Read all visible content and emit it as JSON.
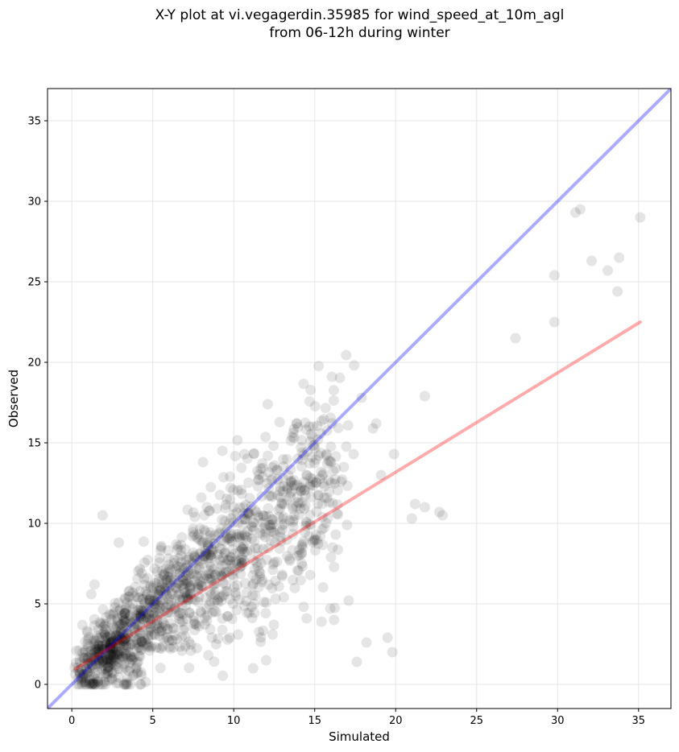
{
  "chart_data": {
    "type": "scatter",
    "title": [
      "X-Y plot at vi.vegagerdin.35985 for wind_speed_at_10m_agl",
      "from 06-12h during winter"
    ],
    "xlabel": "Simulated",
    "ylabel": "Observed",
    "xlim": [
      -1.5,
      37
    ],
    "ylim": [
      -1.5,
      37
    ],
    "xticks": [
      0,
      5,
      10,
      15,
      20,
      25,
      30,
      35
    ],
    "yticks": [
      0,
      5,
      10,
      15,
      20,
      25,
      30,
      35
    ],
    "grid": true,
    "colors": {
      "points": "#000000",
      "identity_line": "#0000ff",
      "fit_line": "#ff0000",
      "grid": "#e6e6e6"
    },
    "identity_line": {
      "x": [
        -1.5,
        37
      ],
      "y": [
        -1.5,
        37
      ]
    },
    "fit_line": {
      "x": [
        0.2,
        35.1
      ],
      "y": [
        0.95,
        22.5
      ]
    },
    "points_x": [
      27.4,
      29.8,
      29.8,
      31.1,
      31.4,
      32.1,
      33.1,
      33.7,
      33.8,
      35.1,
      21.0,
      21.2,
      21.8,
      22.7,
      22.9,
      19.5,
      19.8,
      17.6,
      18.2,
      18.8,
      19.1,
      19.9,
      17.9,
      18.6,
      12.1,
      13.9,
      14.9,
      21.8,
      1.9,
      2.9,
      1.4,
      1.2,
      16.3,
      17.0,
      16.8,
      17.4,
      15.2,
      14.5,
      12.4,
      11.2,
      12.0,
      8.1,
      9.3,
      7.6,
      16.2,
      17.1,
      16.1,
      15.6,
      15.0,
      14.2,
      13.1,
      8.0,
      9.8,
      10.6,
      11.8,
      12.8,
      12.1,
      10.5,
      9.9,
      8.6,
      7.8,
      6.8,
      6.1,
      5.4,
      4.8,
      4.1,
      3.6,
      2.6,
      1.4,
      0.6
    ],
    "points_y": [
      21.5,
      25.4,
      22.5,
      29.3,
      29.5,
      26.3,
      25.7,
      24.4,
      26.5,
      29.0,
      10.3,
      11.2,
      11.0,
      10.7,
      10.5,
      2.9,
      2.0,
      1.4,
      2.6,
      16.2,
      13.0,
      14.3,
      17.8,
      15.9,
      17.4,
      16.2,
      16.0,
      17.9,
      10.5,
      8.8,
      6.2,
      5.6,
      9.3,
      9.9,
      13.5,
      14.3,
      15.2,
      4.1,
      3.1,
      1.0,
      1.5,
      13.8,
      14.5,
      10.4,
      4.0,
      5.2,
      8.5,
      12.3,
      9.0,
      7.5,
      11.2,
      11.6,
      12.2,
      11.0,
      9.7,
      10.4,
      14.2,
      7.9,
      7.2,
      6.6,
      6.0,
      4.9,
      3.8,
      3.3,
      2.1,
      1.4,
      1.0,
      0.7,
      0.4,
      0.3
    ]
  }
}
